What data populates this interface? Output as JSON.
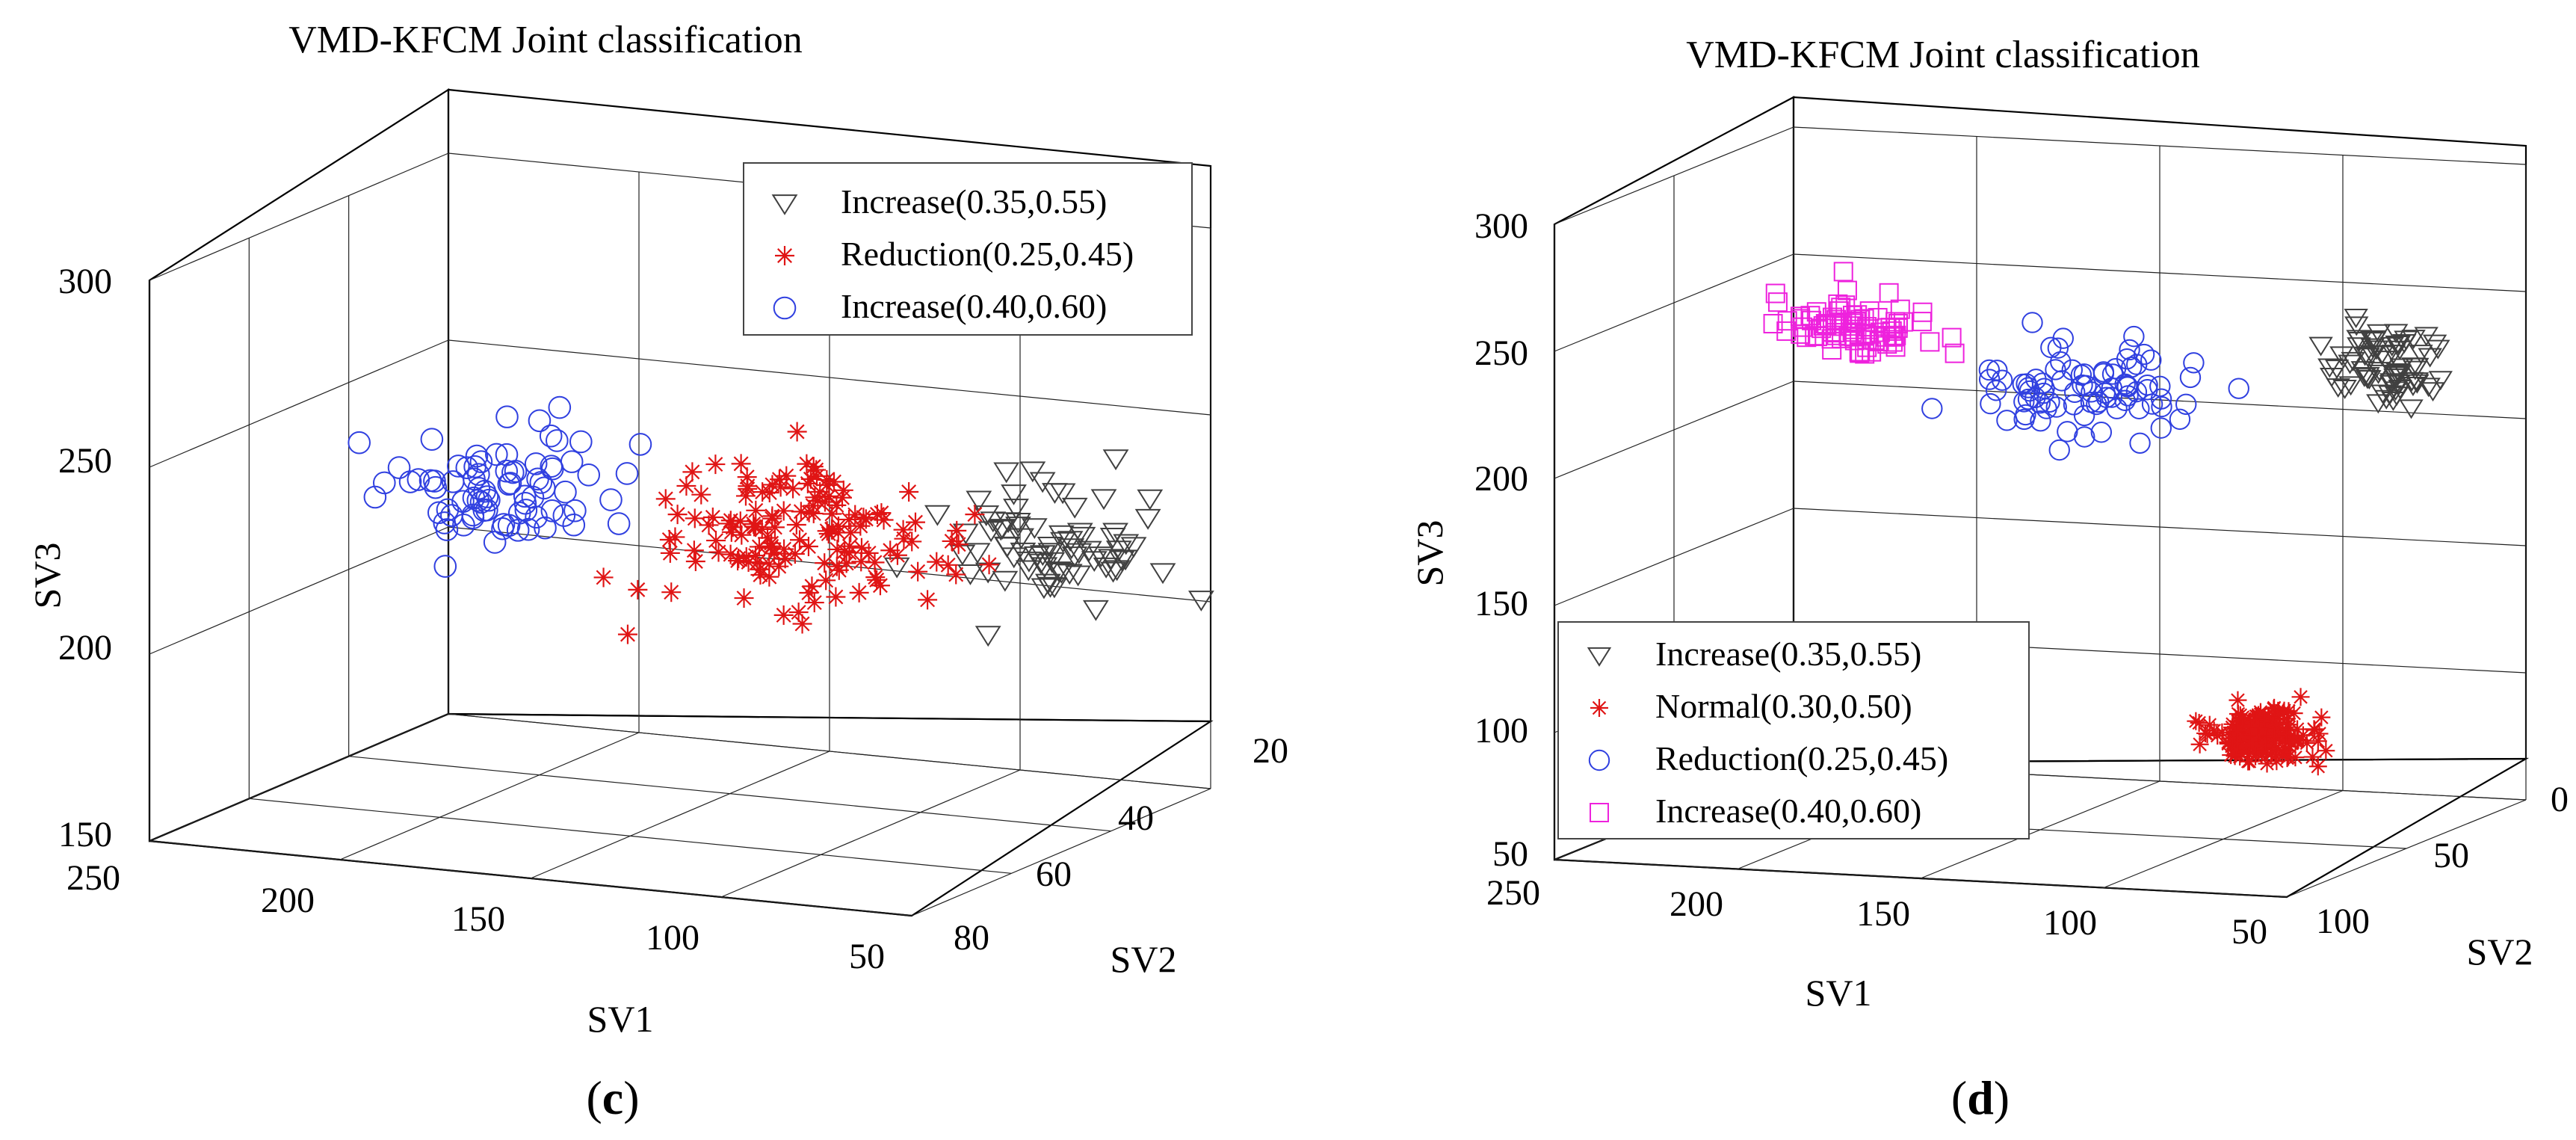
{
  "chart_data": [
    {
      "type": "scatter",
      "panel_label": "c",
      "title": "VMD-KFCM Joint classification",
      "xlabel": "SV1",
      "ylabel": "SV2",
      "zlabel": "SV3",
      "x_ticks": [
        "250",
        "200",
        "150",
        "100",
        "50"
      ],
      "y_ticks": [
        "20",
        "40",
        "60",
        "80"
      ],
      "z_ticks": [
        "150",
        "200",
        "250",
        "300"
      ],
      "legend": [
        "Increase(0.35,0.55)",
        "Reduction(0.25,0.45)",
        "Increase(0.40,0.60)"
      ],
      "series": [
        {
          "name": "Increase(0.35,0.55)",
          "marker": "triangle-down",
          "color": "#404040",
          "center": [
            55,
            45,
            228
          ],
          "spread": [
            20,
            8,
            14
          ],
          "count": 78
        },
        {
          "name": "Reduction(0.25,0.45)",
          "marker": "star",
          "color": "#e01515",
          "center": [
            125,
            45,
            225
          ],
          "spread": [
            28,
            9,
            16
          ],
          "count": 150
        },
        {
          "name": "Increase(0.40,0.60)",
          "marker": "circle",
          "color": "#3040e0",
          "center": [
            205,
            45,
            230
          ],
          "spread": [
            22,
            9,
            14
          ],
          "count": 80
        }
      ]
    },
    {
      "type": "scatter",
      "panel_label": "d",
      "title": "VMD-KFCM Joint classification",
      "xlabel": "SV1",
      "ylabel": "SV2",
      "zlabel": "SV3",
      "x_ticks": [
        "250",
        "200",
        "150",
        "100",
        "50"
      ],
      "y_ticks": [
        "0",
        "50",
        "100"
      ],
      "z_ticks": [
        "50",
        "100",
        "150",
        "200",
        "250",
        "300"
      ],
      "legend": [
        "Increase(0.35,0.55)",
        "Normal(0.30,0.50)",
        "Reduction(0.25,0.45)",
        "Increase(0.40,0.60)"
      ],
      "series": [
        {
          "name": "Increase(0.35,0.55)",
          "marker": "triangle-down",
          "color": "#404040",
          "center": [
            75,
            20,
            225
          ],
          "spread": [
            12,
            6,
            14
          ],
          "count": 75
        },
        {
          "name": "Normal(0.30,0.50)",
          "marker": "star",
          "color": "#e01515",
          "center": [
            70,
            80,
            105
          ],
          "spread": [
            10,
            5,
            8
          ],
          "count": 220
        },
        {
          "name": "Reduction(0.25,0.45)",
          "marker": "circle",
          "color": "#3040e0",
          "center": [
            150,
            30,
            215
          ],
          "spread": [
            25,
            8,
            16
          ],
          "count": 85
        },
        {
          "name": "Increase(0.40,0.60)",
          "marker": "square",
          "color": "#ee22dd",
          "center": [
            220,
            20,
            232
          ],
          "spread": [
            18,
            6,
            12
          ],
          "count": 85
        }
      ]
    }
  ]
}
